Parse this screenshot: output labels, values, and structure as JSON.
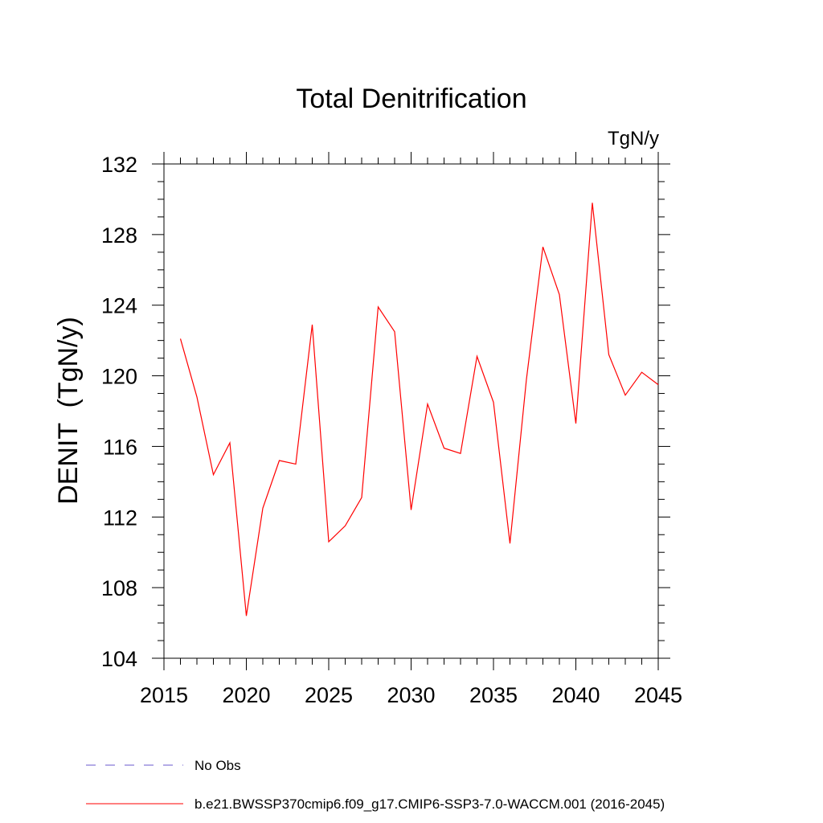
{
  "chart_data": {
    "type": "line",
    "title": "Total Denitrification",
    "units_label": "TgN/y",
    "ylabel": "DENIT  (TgN/y)",
    "xlabel": "",
    "xlim": [
      2015,
      2045
    ],
    "ylim": [
      104,
      132
    ],
    "x_ticks": [
      2015,
      2020,
      2025,
      2030,
      2035,
      2040,
      2045
    ],
    "y_ticks": [
      104,
      108,
      112,
      116,
      120,
      124,
      128,
      132
    ],
    "x_minor_step": 1,
    "y_minor_step": 1,
    "grid": false,
    "legend_position": "bottom-left",
    "series": [
      {
        "name": "b.e21.BWSSP370cmip6.f09_g17.CMIP6-SSP3-7.0-WACCM.001 (2016-2045)",
        "color": "#ff0000",
        "style": "solid",
        "x": [
          2016,
          2017,
          2018,
          2019,
          2020,
          2021,
          2022,
          2023,
          2024,
          2025,
          2026,
          2027,
          2028,
          2029,
          2030,
          2031,
          2032,
          2033,
          2034,
          2035,
          2036,
          2037,
          2038,
          2039,
          2040,
          2041,
          2042,
          2043,
          2044,
          2045
        ],
        "values": [
          122.1,
          118.8,
          114.4,
          116.2,
          106.4,
          112.5,
          115.2,
          115.0,
          122.9,
          110.6,
          111.5,
          113.1,
          123.9,
          122.5,
          112.4,
          118.4,
          115.9,
          115.6,
          121.1,
          118.5,
          110.5,
          119.8,
          127.3,
          124.6,
          117.3,
          129.8,
          121.2,
          118.9,
          120.2,
          119.5
        ]
      }
    ],
    "legend": [
      {
        "label": "No Obs",
        "color": "#6a5acd",
        "style": "dashed"
      },
      {
        "label": "b.e21.BWSSP370cmip6.f09_g17.CMIP6-SSP3-7.0-WACCM.001 (2016-2045)",
        "color": "#ff0000",
        "style": "solid"
      }
    ]
  }
}
